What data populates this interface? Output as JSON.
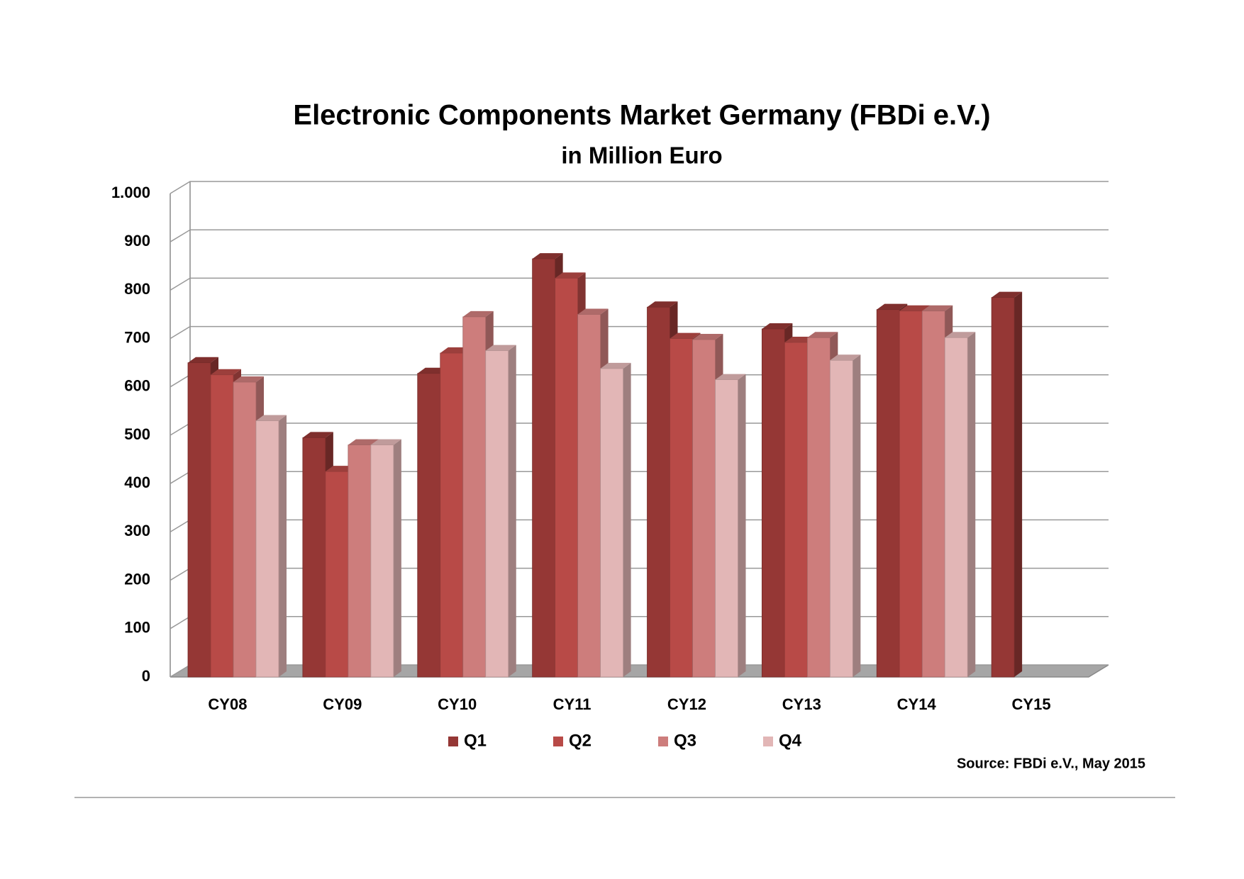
{
  "chart_data": {
    "type": "bar3d",
    "title": "Electronic Components Market Germany (FBDi e.V.)",
    "subtitle": "in Million Euro",
    "source": "Source: FBDi e.V.,  May 2015",
    "categories": [
      "CY08",
      "CY09",
      "CY10",
      "CY11",
      "CY12",
      "CY13",
      "CY14",
      "CY15"
    ],
    "series": [
      {
        "name": "Q1",
        "color": "#953735",
        "values": [
          650,
          495,
          628,
          865,
          765,
          720,
          760,
          785
        ]
      },
      {
        "name": "Q2",
        "color": "#b84a47",
        "values": [
          625,
          425,
          670,
          825,
          700,
          692,
          757,
          null
        ]
      },
      {
        "name": "Q3",
        "color": "#cd7d7c",
        "values": [
          610,
          480,
          745,
          750,
          698,
          702,
          757,
          null
        ]
      },
      {
        "name": "Q4",
        "color": "#e2b6b6",
        "values": [
          530,
          480,
          675,
          638,
          615,
          655,
          702,
          null
        ]
      }
    ],
    "ylim": [
      0,
      1000
    ],
    "yticks": [
      0,
      100,
      200,
      300,
      400,
      500,
      600,
      700,
      800,
      900,
      {
        "value": 1000,
        "label": "1.000"
      }
    ],
    "grid": true
  }
}
